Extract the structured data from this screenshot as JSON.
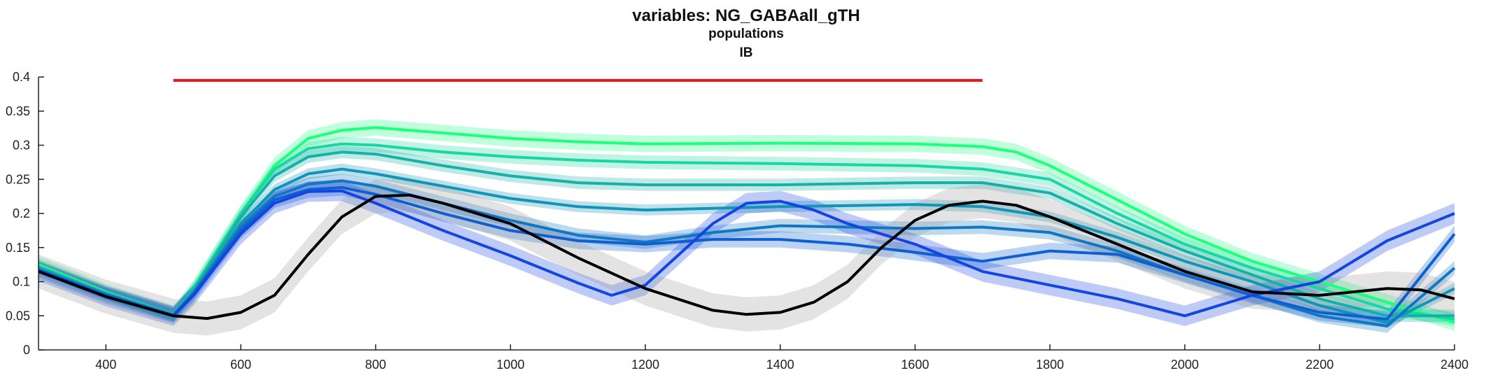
{
  "chart_data": {
    "type": "line",
    "title": "variables: NG_GABAall_gTH",
    "subtitle": "populations",
    "subtitle2": "IB",
    "xlim": [
      300,
      2400
    ],
    "ylim": [
      0,
      0.4
    ],
    "x_ticks": [
      400,
      600,
      800,
      1000,
      1200,
      1400,
      1600,
      1800,
      2000,
      2200,
      2400
    ],
    "y_ticks": [
      0,
      0.05,
      0.1,
      0.15,
      0.2,
      0.25,
      0.3,
      0.35,
      0.4
    ],
    "grid": false,
    "legend": "none",
    "stimulus_bar": {
      "x": [
        500,
        1700
      ],
      "y": 0.395,
      "color": "#e8141b"
    },
    "series": [
      {
        "color": "#1eff7e",
        "band": 0.012,
        "points": [
          [
            300,
            0.125
          ],
          [
            400,
            0.085
          ],
          [
            500,
            0.052
          ],
          [
            530,
            0.09
          ],
          [
            600,
            0.2
          ],
          [
            650,
            0.27
          ],
          [
            700,
            0.31
          ],
          [
            750,
            0.322
          ],
          [
            800,
            0.326
          ],
          [
            900,
            0.318
          ],
          [
            1000,
            0.31
          ],
          [
            1100,
            0.305
          ],
          [
            1200,
            0.302
          ],
          [
            1400,
            0.303
          ],
          [
            1600,
            0.302
          ],
          [
            1700,
            0.298
          ],
          [
            1750,
            0.29
          ],
          [
            1800,
            0.27
          ],
          [
            1900,
            0.22
          ],
          [
            2000,
            0.17
          ],
          [
            2100,
            0.13
          ],
          [
            2200,
            0.1
          ],
          [
            2300,
            0.07
          ],
          [
            2400,
            0.04
          ]
        ]
      },
      {
        "color": "#19d6a2",
        "band": 0.01,
        "points": [
          [
            300,
            0.123
          ],
          [
            400,
            0.084
          ],
          [
            500,
            0.052
          ],
          [
            530,
            0.09
          ],
          [
            600,
            0.2
          ],
          [
            650,
            0.265
          ],
          [
            700,
            0.295
          ],
          [
            750,
            0.302
          ],
          [
            800,
            0.3
          ],
          [
            900,
            0.29
          ],
          [
            1000,
            0.283
          ],
          [
            1100,
            0.278
          ],
          [
            1200,
            0.275
          ],
          [
            1400,
            0.273
          ],
          [
            1600,
            0.27
          ],
          [
            1700,
            0.265
          ],
          [
            1800,
            0.25
          ],
          [
            1900,
            0.2
          ],
          [
            2000,
            0.155
          ],
          [
            2100,
            0.12
          ],
          [
            2200,
            0.09
          ],
          [
            2300,
            0.06
          ],
          [
            2400,
            0.045
          ]
        ]
      },
      {
        "color": "#15b0a8",
        "band": 0.009,
        "points": [
          [
            300,
            0.121
          ],
          [
            400,
            0.083
          ],
          [
            500,
            0.052
          ],
          [
            530,
            0.088
          ],
          [
            600,
            0.195
          ],
          [
            650,
            0.255
          ],
          [
            700,
            0.283
          ],
          [
            750,
            0.29
          ],
          [
            800,
            0.287
          ],
          [
            900,
            0.27
          ],
          [
            1000,
            0.255
          ],
          [
            1100,
            0.245
          ],
          [
            1200,
            0.242
          ],
          [
            1400,
            0.242
          ],
          [
            1600,
            0.245
          ],
          [
            1700,
            0.245
          ],
          [
            1800,
            0.23
          ],
          [
            1900,
            0.185
          ],
          [
            2000,
            0.145
          ],
          [
            2100,
            0.11
          ],
          [
            2200,
            0.075
          ],
          [
            2300,
            0.05
          ],
          [
            2400,
            0.05
          ]
        ]
      },
      {
        "color": "#1294b8",
        "band": 0.008,
        "points": [
          [
            300,
            0.119
          ],
          [
            400,
            0.082
          ],
          [
            500,
            0.051
          ],
          [
            530,
            0.085
          ],
          [
            600,
            0.185
          ],
          [
            650,
            0.235
          ],
          [
            700,
            0.258
          ],
          [
            750,
            0.265
          ],
          [
            800,
            0.258
          ],
          [
            900,
            0.24
          ],
          [
            1000,
            0.222
          ],
          [
            1100,
            0.21
          ],
          [
            1200,
            0.205
          ],
          [
            1400,
            0.21
          ],
          [
            1600,
            0.213
          ],
          [
            1700,
            0.21
          ],
          [
            1800,
            0.195
          ],
          [
            1900,
            0.165
          ],
          [
            2000,
            0.13
          ],
          [
            2100,
            0.1
          ],
          [
            2200,
            0.065
          ],
          [
            2300,
            0.04
          ],
          [
            2400,
            0.09
          ]
        ]
      },
      {
        "color": "#1277c2",
        "band": 0.01,
        "points": [
          [
            300,
            0.118
          ],
          [
            400,
            0.081
          ],
          [
            500,
            0.051
          ],
          [
            530,
            0.083
          ],
          [
            600,
            0.18
          ],
          [
            650,
            0.225
          ],
          [
            700,
            0.243
          ],
          [
            750,
            0.248
          ],
          [
            800,
            0.24
          ],
          [
            900,
            0.215
          ],
          [
            1000,
            0.19
          ],
          [
            1100,
            0.168
          ],
          [
            1200,
            0.158
          ],
          [
            1300,
            0.172
          ],
          [
            1400,
            0.182
          ],
          [
            1500,
            0.18
          ],
          [
            1600,
            0.178
          ],
          [
            1700,
            0.18
          ],
          [
            1800,
            0.172
          ],
          [
            1900,
            0.145
          ],
          [
            2000,
            0.11
          ],
          [
            2100,
            0.08
          ],
          [
            2200,
            0.05
          ],
          [
            2300,
            0.035
          ],
          [
            2400,
            0.12
          ]
        ]
      },
      {
        "color": "#105fd0",
        "band": 0.012,
        "points": [
          [
            300,
            0.117
          ],
          [
            400,
            0.08
          ],
          [
            500,
            0.051
          ],
          [
            530,
            0.082
          ],
          [
            600,
            0.175
          ],
          [
            650,
            0.22
          ],
          [
            700,
            0.235
          ],
          [
            750,
            0.238
          ],
          [
            800,
            0.228
          ],
          [
            900,
            0.2
          ],
          [
            1000,
            0.175
          ],
          [
            1100,
            0.16
          ],
          [
            1200,
            0.155
          ],
          [
            1300,
            0.162
          ],
          [
            1400,
            0.162
          ],
          [
            1500,
            0.155
          ],
          [
            1600,
            0.143
          ],
          [
            1700,
            0.13
          ],
          [
            1800,
            0.145
          ],
          [
            1900,
            0.14
          ],
          [
            2000,
            0.11
          ],
          [
            2100,
            0.08
          ],
          [
            2200,
            0.055
          ],
          [
            2300,
            0.045
          ],
          [
            2400,
            0.17
          ]
        ]
      },
      {
        "color": "#1246de",
        "band": 0.015,
        "points": [
          [
            300,
            0.116
          ],
          [
            400,
            0.079
          ],
          [
            500,
            0.05
          ],
          [
            530,
            0.08
          ],
          [
            600,
            0.17
          ],
          [
            650,
            0.215
          ],
          [
            700,
            0.232
          ],
          [
            750,
            0.233
          ],
          [
            800,
            0.215
          ],
          [
            900,
            0.175
          ],
          [
            1000,
            0.138
          ],
          [
            1100,
            0.098
          ],
          [
            1150,
            0.08
          ],
          [
            1200,
            0.095
          ],
          [
            1250,
            0.14
          ],
          [
            1300,
            0.185
          ],
          [
            1350,
            0.215
          ],
          [
            1400,
            0.218
          ],
          [
            1450,
            0.205
          ],
          [
            1500,
            0.185
          ],
          [
            1600,
            0.155
          ],
          [
            1700,
            0.115
          ],
          [
            1800,
            0.095
          ],
          [
            1900,
            0.075
          ],
          [
            2000,
            0.05
          ],
          [
            2100,
            0.08
          ],
          [
            2200,
            0.1
          ],
          [
            2300,
            0.16
          ],
          [
            2400,
            0.2
          ]
        ]
      },
      {
        "color": "#000000",
        "band": 0.025,
        "points": [
          [
            300,
            0.115
          ],
          [
            400,
            0.078
          ],
          [
            500,
            0.05
          ],
          [
            550,
            0.046
          ],
          [
            600,
            0.055
          ],
          [
            650,
            0.08
          ],
          [
            700,
            0.14
          ],
          [
            750,
            0.195
          ],
          [
            800,
            0.225
          ],
          [
            850,
            0.227
          ],
          [
            900,
            0.215
          ],
          [
            1000,
            0.185
          ],
          [
            1100,
            0.135
          ],
          [
            1200,
            0.09
          ],
          [
            1300,
            0.058
          ],
          [
            1350,
            0.052
          ],
          [
            1400,
            0.055
          ],
          [
            1450,
            0.07
          ],
          [
            1500,
            0.1
          ],
          [
            1550,
            0.15
          ],
          [
            1600,
            0.19
          ],
          [
            1650,
            0.212
          ],
          [
            1700,
            0.218
          ],
          [
            1750,
            0.212
          ],
          [
            1800,
            0.195
          ],
          [
            1900,
            0.155
          ],
          [
            2000,
            0.115
          ],
          [
            2100,
            0.085
          ],
          [
            2200,
            0.08
          ],
          [
            2300,
            0.09
          ],
          [
            2350,
            0.088
          ],
          [
            2400,
            0.075
          ]
        ]
      }
    ]
  }
}
